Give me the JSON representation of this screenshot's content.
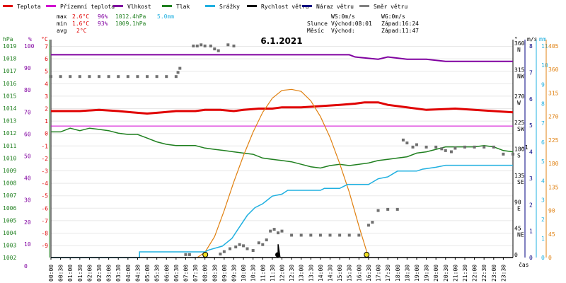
{
  "chart_data": {
    "type": "line",
    "title": "6.1.2021",
    "xlabel": "čas",
    "legend": [
      {
        "name": "Teplota",
        "color": "#e00000"
      },
      {
        "name": "Přízemní teplota",
        "color": "#d000d0"
      },
      {
        "name": "Vlhkost",
        "color": "#8000a0"
      },
      {
        "name": "Tlak",
        "color": "#208020"
      },
      {
        "name": "Srážky",
        "color": "#20b0e0"
      },
      {
        "name": "Rychlost větru",
        "color": "#000000"
      },
      {
        "name": "Náraz větru",
        "color": "#000080"
      },
      {
        "name": "Směr větru",
        "color": "#808080"
      }
    ],
    "stats": {
      "max_label": "max",
      "max_temp": "2.6°C",
      "max_hum": "96%",
      "max_press": "1012.4hPa",
      "max_rain": "5.0mm",
      "min_label": "min",
      "min_temp": "1.6°C",
      "min_hum": "93%",
      "min_press": "1009.1hPa",
      "avg_label": "avg",
      "avg_temp": "2°C"
    },
    "wind_info": {
      "ws": "WS:0m/s",
      "wg": "WG:0m/s"
    },
    "sun_info": {
      "label": "Slunce",
      "rise": "Východ:08:01",
      "set": "Západ:16:24"
    },
    "moon_info": {
      "label": "Měsíc",
      "rise": "Východ:",
      "set": "Západ:11:47"
    },
    "axes": {
      "hpa_label": "hPa",
      "hum_label": "%",
      "temp_label": "°C",
      "dir_label": "°",
      "ms_label": "m/s",
      "mm_label": "mm",
      "hpa_ticks": [
        "1019",
        "1018",
        "1017",
        "1016",
        "1015",
        "1014",
        "1013",
        "1012",
        "1011",
        "1010",
        "1009",
        "1008",
        "1007",
        "1006",
        "1005",
        "1004",
        "1003",
        "1002"
      ],
      "hum_ticks": [
        "100",
        "90",
        "80",
        "70",
        "60",
        "50",
        "40",
        "30",
        "20",
        "10",
        "0"
      ],
      "temp_ticks": [
        "7",
        "6",
        "5",
        "4",
        "3",
        "2",
        "1",
        "0",
        "-1",
        "-2",
        "-3",
        "-4",
        "-5",
        "-6",
        "-7",
        "-8",
        "-9"
      ],
      "dir_ticks": [
        [
          "360",
          "N"
        ],
        [
          "315",
          "NW"
        ],
        [
          "270",
          "W"
        ],
        [
          "225",
          "SW"
        ],
        [
          "180",
          "S"
        ],
        [
          "135",
          "SE"
        ],
        [
          "90",
          "E"
        ],
        [
          "45",
          "NE"
        ],
        [
          "0",
          ""
        ]
      ],
      "ms_ticks": [
        "8",
        "7",
        "6",
        "5",
        "4",
        "3",
        "2",
        "1",
        "0"
      ],
      "mm_ticks": [
        "11",
        "10",
        "9",
        "8",
        "7",
        "6",
        "5",
        "4",
        "3",
        "2",
        "1",
        "0"
      ],
      "solar_ticks": [
        "405",
        "360",
        "315",
        "270",
        "225",
        "180",
        "135",
        "90",
        "45",
        "0"
      ],
      "wind_avg_marker": "1",
      "time_ticks": [
        "00:00",
        "00:30",
        "01:00",
        "01:30",
        "02:00",
        "02:30",
        "03:00",
        "03:30",
        "04:00",
        "04:30",
        "05:00",
        "05:30",
        "06:00",
        "06:30",
        "07:00",
        "07:30",
        "08:00",
        "08:30",
        "09:00",
        "09:30",
        "10:00",
        "10:30",
        "11:00",
        "11:30",
        "12:00",
        "12:30",
        "13:00",
        "13:30",
        "14:00",
        "14:30",
        "15:00",
        "15:30",
        "16:00",
        "16:30",
        "17:00",
        "17:30",
        "18:00",
        "18:30",
        "19:00",
        "19:30",
        "20:00",
        "20:30",
        "21:00",
        "21:30",
        "22:00",
        "22:30",
        "23:00",
        "23:30"
      ]
    },
    "ground_temp": 0.6,
    "temperature": [
      [
        0,
        1.8
      ],
      [
        1.5,
        1.8
      ],
      [
        2.5,
        1.9
      ],
      [
        3.5,
        1.8
      ],
      [
        4.2,
        1.7
      ],
      [
        5,
        1.6
      ],
      [
        5.8,
        1.7
      ],
      [
        6.5,
        1.8
      ],
      [
        7.5,
        1.8
      ],
      [
        8,
        1.9
      ],
      [
        8.8,
        1.9
      ],
      [
        9.5,
        1.8
      ],
      [
        10,
        1.9
      ],
      [
        10.8,
        2.0
      ],
      [
        11.5,
        2.0
      ],
      [
        12,
        2.1
      ],
      [
        13,
        2.1
      ],
      [
        14,
        2.2
      ],
      [
        15,
        2.3
      ],
      [
        15.8,
        2.4
      ],
      [
        16.3,
        2.5
      ],
      [
        17,
        2.5
      ],
      [
        17.5,
        2.3
      ],
      [
        18.5,
        2.1
      ],
      [
        19.5,
        1.9
      ],
      [
        21,
        2.0
      ],
      [
        22,
        1.9
      ],
      [
        23,
        1.8
      ],
      [
        24,
        1.7
      ]
    ],
    "humidity": [
      [
        0,
        96
      ],
      [
        15.5,
        96
      ],
      [
        15.8,
        95
      ],
      [
        17,
        94
      ],
      [
        17.5,
        95
      ],
      [
        18.5,
        94
      ],
      [
        19.5,
        94
      ],
      [
        20.5,
        93
      ],
      [
        24,
        93
      ]
    ],
    "pressure": [
      [
        0,
        1012.1
      ],
      [
        0.5,
        1012.1
      ],
      [
        1,
        1012.4
      ],
      [
        1.5,
        1012.2
      ],
      [
        2,
        1012.4
      ],
      [
        2.5,
        1012.3
      ],
      [
        3,
        1012.2
      ],
      [
        3.5,
        1012.0
      ],
      [
        4,
        1011.9
      ],
      [
        4.5,
        1011.9
      ],
      [
        5,
        1011.6
      ],
      [
        5.5,
        1011.3
      ],
      [
        6,
        1011.1
      ],
      [
        6.5,
        1011.0
      ],
      [
        7,
        1011.0
      ],
      [
        7.5,
        1011.0
      ],
      [
        8,
        1010.8
      ],
      [
        8.5,
        1010.7
      ],
      [
        9,
        1010.6
      ],
      [
        9.5,
        1010.5
      ],
      [
        10,
        1010.4
      ],
      [
        10.5,
        1010.3
      ],
      [
        11,
        1010.0
      ],
      [
        11.5,
        1009.9
      ],
      [
        12,
        1009.8
      ],
      [
        12.5,
        1009.7
      ],
      [
        13,
        1009.5
      ],
      [
        13.5,
        1009.3
      ],
      [
        14,
        1009.2
      ],
      [
        14.5,
        1009.4
      ],
      [
        15,
        1009.5
      ],
      [
        15.5,
        1009.4
      ],
      [
        16,
        1009.5
      ],
      [
        16.5,
        1009.6
      ],
      [
        17,
        1009.8
      ],
      [
        17.5,
        1009.9
      ],
      [
        18,
        1010.0
      ],
      [
        18.5,
        1010.1
      ],
      [
        19,
        1010.4
      ],
      [
        19.5,
        1010.5
      ],
      [
        20,
        1010.7
      ],
      [
        20.5,
        1010.9
      ],
      [
        21,
        1010.9
      ],
      [
        21.5,
        1010.9
      ],
      [
        22,
        1010.9
      ],
      [
        22.5,
        1011.0
      ],
      [
        23,
        1010.9
      ],
      [
        23.5,
        1010.6
      ],
      [
        24,
        1010.5
      ]
    ],
    "rain": [
      [
        0,
        0
      ],
      [
        4.6,
        0
      ],
      [
        4.6,
        0.3
      ],
      [
        8.0,
        0.3
      ],
      [
        8.2,
        0.4
      ],
      [
        8.9,
        0.6
      ],
      [
        9.4,
        1.0
      ],
      [
        9.8,
        1.6
      ],
      [
        10.2,
        2.2
      ],
      [
        10.6,
        2.6
      ],
      [
        11.0,
        2.8
      ],
      [
        11.5,
        3.2
      ],
      [
        12.0,
        3.3
      ],
      [
        12.3,
        3.5
      ],
      [
        14.0,
        3.5
      ],
      [
        14.2,
        3.6
      ],
      [
        15.0,
        3.6
      ],
      [
        15.4,
        3.8
      ],
      [
        16.5,
        3.8
      ],
      [
        17.0,
        4.1
      ],
      [
        17.5,
        4.2
      ],
      [
        18.0,
        4.5
      ],
      [
        19.0,
        4.5
      ],
      [
        19.3,
        4.6
      ],
      [
        20.0,
        4.7
      ],
      [
        20.5,
        4.8
      ],
      [
        21.0,
        4.8
      ],
      [
        22.0,
        4.8
      ],
      [
        24,
        4.8
      ]
    ],
    "solar": [
      [
        7.6,
        0
      ],
      [
        8.0,
        10
      ],
      [
        8.5,
        40
      ],
      [
        9.0,
        90
      ],
      [
        9.5,
        145
      ],
      [
        10.0,
        195
      ],
      [
        10.5,
        240
      ],
      [
        11.0,
        278
      ],
      [
        11.5,
        305
      ],
      [
        12.0,
        320
      ],
      [
        12.5,
        322
      ],
      [
        13.0,
        318
      ],
      [
        13.5,
        300
      ],
      [
        14.0,
        270
      ],
      [
        14.5,
        230
      ],
      [
        15.0,
        180
      ],
      [
        15.5,
        125
      ],
      [
        16.0,
        60
      ],
      [
        16.5,
        0
      ]
    ],
    "wind_speed": [
      [
        0,
        0
      ],
      [
        11.8,
        0
      ],
      [
        11.8,
        0.5
      ],
      [
        11.9,
        0
      ],
      [
        24,
        0
      ]
    ],
    "wind_direction": [
      [
        0,
        308
      ],
      [
        0.5,
        308
      ],
      [
        1,
        308
      ],
      [
        1.5,
        308
      ],
      [
        2,
        308
      ],
      [
        2.5,
        308
      ],
      [
        3,
        308
      ],
      [
        3.5,
        308
      ],
      [
        4,
        308
      ],
      [
        4.5,
        308
      ],
      [
        5,
        308
      ],
      [
        5.5,
        308
      ],
      [
        6,
        308
      ],
      [
        6.5,
        308
      ],
      [
        6.6,
        315
      ],
      [
        6.7,
        322
      ],
      [
        7.4,
        360
      ],
      [
        7.6,
        360
      ],
      [
        7.8,
        362
      ],
      [
        8.0,
        360
      ],
      [
        8.3,
        360
      ],
      [
        8.5,
        355
      ],
      [
        8.7,
        352
      ],
      [
        9.2,
        362
      ],
      [
        9.5,
        360
      ],
      [
        7.0,
        5
      ],
      [
        7.2,
        5
      ],
      [
        8.8,
        6
      ],
      [
        9.0,
        10
      ],
      [
        9.3,
        15
      ],
      [
        9.6,
        18
      ],
      [
        9.8,
        22
      ],
      [
        10.0,
        20
      ],
      [
        10.2,
        15
      ],
      [
        10.5,
        12
      ],
      [
        10.8,
        25
      ],
      [
        11.0,
        22
      ],
      [
        11.2,
        30
      ],
      [
        11.4,
        45
      ],
      [
        11.6,
        48
      ],
      [
        11.8,
        42
      ],
      [
        12.0,
        45
      ],
      [
        12.5,
        38
      ],
      [
        13.0,
        38
      ],
      [
        13.5,
        38
      ],
      [
        14.0,
        38
      ],
      [
        14.5,
        38
      ],
      [
        15.0,
        38
      ],
      [
        15.5,
        38
      ],
      [
        16.0,
        38
      ],
      [
        16.5,
        55
      ],
      [
        16.7,
        60
      ],
      [
        17.0,
        80
      ],
      [
        17.5,
        82
      ],
      [
        18.0,
        82
      ],
      [
        18.3,
        200
      ],
      [
        18.5,
        195
      ],
      [
        18.8,
        188
      ],
      [
        19.0,
        192
      ],
      [
        19.5,
        188
      ],
      [
        20.0,
        188
      ],
      [
        20.3,
        185
      ],
      [
        20.5,
        182
      ],
      [
        20.8,
        180
      ],
      [
        21.0,
        186
      ],
      [
        21.5,
        188
      ],
      [
        22.0,
        188
      ],
      [
        22.5,
        188
      ],
      [
        23.0,
        188
      ],
      [
        23.5,
        176
      ],
      [
        24,
        176
      ]
    ],
    "sun_events": {
      "sunrise": 8.02,
      "sunset": 16.4
    },
    "moon_events": {
      "moonset": 11.78
    }
  }
}
